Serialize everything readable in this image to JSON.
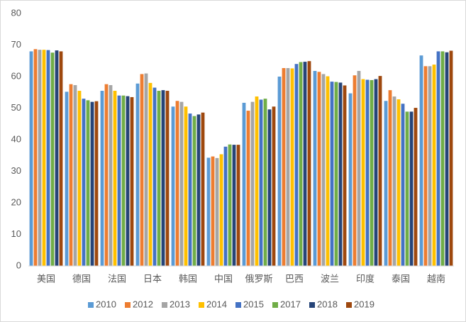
{
  "chart_data": {
    "type": "bar",
    "categories": [
      "美国",
      "德国",
      "法国",
      "日本",
      "韩国",
      "中国",
      "俄罗斯",
      "巴西",
      "波兰",
      "印度",
      "泰国",
      "越南"
    ],
    "series": [
      {
        "name": "2010",
        "color": "#5b9bd5",
        "values": [
          68.0,
          55.2,
          55.5,
          57.8,
          50.5,
          34.3,
          51.7,
          60.0,
          61.8,
          54.7,
          52.3,
          66.7
        ]
      },
      {
        "name": "2012",
        "color": "#ed7d31",
        "values": [
          68.7,
          57.6,
          57.6,
          60.8,
          52.3,
          34.7,
          49.2,
          62.7,
          61.5,
          60.4,
          55.7,
          63.3
        ]
      },
      {
        "name": "2013",
        "color": "#a5a5a5",
        "values": [
          68.5,
          57.3,
          57.3,
          61.0,
          52.0,
          34.2,
          52.0,
          62.7,
          60.8,
          61.8,
          53.7,
          63.3
        ]
      },
      {
        "name": "2014",
        "color": "#ffc000",
        "values": [
          68.5,
          55.5,
          55.5,
          58.0,
          50.5,
          35.4,
          53.7,
          62.6,
          60.1,
          59.2,
          52.8,
          63.8
        ]
      },
      {
        "name": "2015",
        "color": "#4472c4",
        "values": [
          68.4,
          53.0,
          54.0,
          56.5,
          48.3,
          37.8,
          52.7,
          64.0,
          58.4,
          59.0,
          51.4,
          68.0
        ]
      },
      {
        "name": "2017",
        "color": "#70ad47",
        "values": [
          67.6,
          52.5,
          54.0,
          55.5,
          47.5,
          38.5,
          53.0,
          64.6,
          58.3,
          58.9,
          48.9,
          68.0
        ]
      },
      {
        "name": "2018",
        "color": "#264478",
        "values": [
          68.3,
          52.0,
          53.8,
          55.7,
          48.0,
          38.4,
          49.6,
          64.7,
          58.1,
          59.2,
          48.9,
          67.7
        ]
      },
      {
        "name": "2019",
        "color": "#9e480e",
        "values": [
          68.0,
          52.2,
          53.5,
          55.5,
          48.6,
          38.4,
          50.5,
          64.9,
          57.2,
          60.2,
          50.1,
          68.2
        ]
      }
    ],
    "ylim": [
      0,
      80
    ],
    "yticks": [
      0,
      10,
      20,
      30,
      40,
      50,
      60,
      70,
      80
    ],
    "grid": false,
    "legend": "bottom"
  }
}
